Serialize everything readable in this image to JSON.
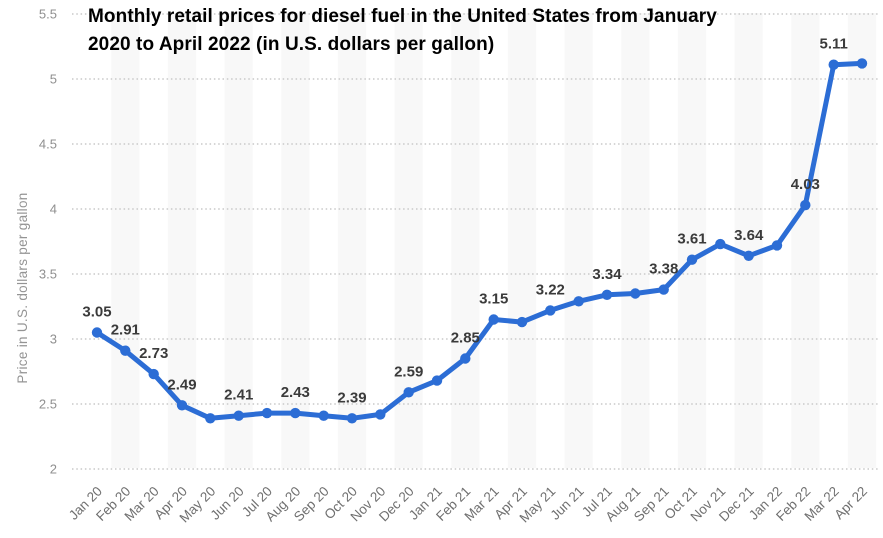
{
  "header": {
    "title_lines": [
      "Monthly retail prices for diesel fuel in the United States from January",
      "2020 to April 2022 (in U.S. dollars per gallon)"
    ]
  },
  "chart_data": {
    "type": "line",
    "title": "Monthly retail prices for diesel fuel in the United States from January 2020 to April 2022 (in U.S. dollars per gallon)",
    "xlabel": "",
    "ylabel": "Price in U.S. dollars per gallon",
    "categories": [
      "Jan 20",
      "Feb 20",
      "Mar 20",
      "Apr 20",
      "May 20",
      "Jun 20",
      "Jul 20",
      "Aug 20",
      "Sep 20",
      "Oct 20",
      "Nov 20",
      "Dec 20",
      "Jan 21",
      "Feb 21",
      "Mar 21",
      "Apr 21",
      "May 21",
      "Jun 21",
      "Jul 21",
      "Aug 21",
      "Sep 21",
      "Oct 21",
      "Nov 21",
      "Dec 21",
      "Jan 22",
      "Feb 22",
      "Mar 22",
      "Apr 22"
    ],
    "values": [
      3.05,
      2.91,
      2.73,
      2.49,
      2.39,
      2.41,
      2.43,
      2.43,
      2.41,
      2.39,
      2.42,
      2.59,
      2.68,
      2.85,
      3.15,
      3.13,
      3.22,
      3.29,
      3.34,
      3.35,
      3.38,
      3.61,
      3.73,
      3.64,
      3.72,
      4.03,
      5.11,
      5.12
    ],
    "data_labels": [
      "3.05",
      "2.91",
      "2.73",
      "2.49",
      null,
      "2.41",
      null,
      "2.43",
      null,
      "2.39",
      null,
      "2.59",
      null,
      "2.85",
      "3.15",
      null,
      "3.22",
      null,
      "3.34",
      null,
      "3.38",
      "3.61",
      null,
      "3.64",
      null,
      "4.03",
      "5.11",
      null
    ],
    "ylim": [
      2,
      5.5
    ],
    "yticks": [
      2,
      2.5,
      3,
      3.5,
      4,
      4.5,
      5,
      5.5
    ],
    "ytick_labels": [
      "2",
      "2.5",
      "3",
      "3.5",
      "4",
      "4.5",
      "5",
      "5.5"
    ],
    "grid": "horizontal-dotted",
    "legend": "none",
    "alternating_column_bands": true
  },
  "colors": {
    "line": "#2c6dd5",
    "point": "#2c6dd5",
    "band": "#f8f8f8",
    "gridline": "#c9c9c9",
    "title_text": "#000000",
    "data_label": "#3b3b3b",
    "y_tick_label": "#8f8f8f",
    "x_tick_label": "#6f6f6f",
    "y_axis_title": "#949494"
  }
}
